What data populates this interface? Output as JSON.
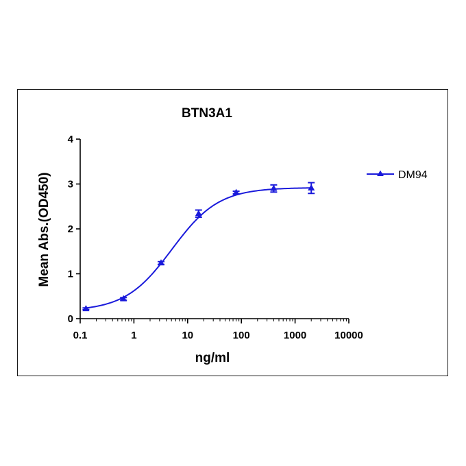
{
  "chart_data": {
    "type": "line",
    "title": "BTN3A1",
    "xlabel": "ng/ml",
    "ylabel": "Mean Abs.(OD450)",
    "x_scale": "log",
    "xlim": [
      0.1,
      10000
    ],
    "ylim": [
      0,
      4
    ],
    "x_ticks": [
      "0.1",
      "1",
      "10",
      "100",
      "1000",
      "10000"
    ],
    "y_ticks": [
      "0",
      "1",
      "2",
      "3",
      "4"
    ],
    "legend_position": "right",
    "series": [
      {
        "name": "DM94",
        "color": "#1a1adb",
        "marker": "triangle",
        "x": [
          0.128,
          0.64,
          3.2,
          16,
          80,
          400,
          2000
        ],
        "y": [
          0.22,
          0.44,
          1.24,
          2.34,
          2.81,
          2.9,
          2.91
        ],
        "error": [
          0.02,
          0.03,
          0.03,
          0.08,
          0.03,
          0.08,
          0.12
        ],
        "fit": {
          "model": "4PL",
          "bottom": 0.17,
          "top": 2.92,
          "ec50": 5.1,
          "hill": 1.0
        }
      }
    ]
  }
}
